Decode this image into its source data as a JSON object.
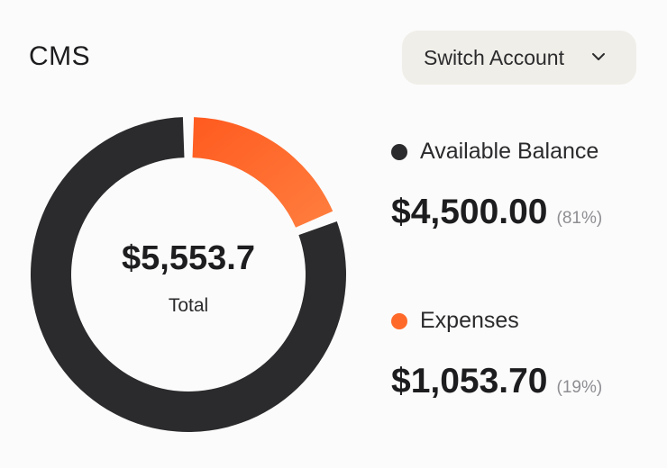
{
  "card": {
    "title": "CMS",
    "switch_account_label": "Switch Account",
    "switch_icon": "chevron-down-icon"
  },
  "chart_data": {
    "type": "pie",
    "categories": [
      "Available Balance",
      "Expenses"
    ],
    "values": [
      4500.0,
      1053.7
    ],
    "percents": [
      81,
      19
    ],
    "colors": [
      "#2b2b2d",
      "#ff6a2a"
    ],
    "center_value": "$5,553.7",
    "center_label": "Total"
  },
  "legend": [
    {
      "label": "Available Balance",
      "amount": "$4,500.00",
      "percent": "(81%)",
      "color": "#2b2b2d"
    },
    {
      "label": "Expenses",
      "amount": "$1,053.70",
      "percent": "(19%)",
      "color": "#ff6a2a"
    }
  ]
}
